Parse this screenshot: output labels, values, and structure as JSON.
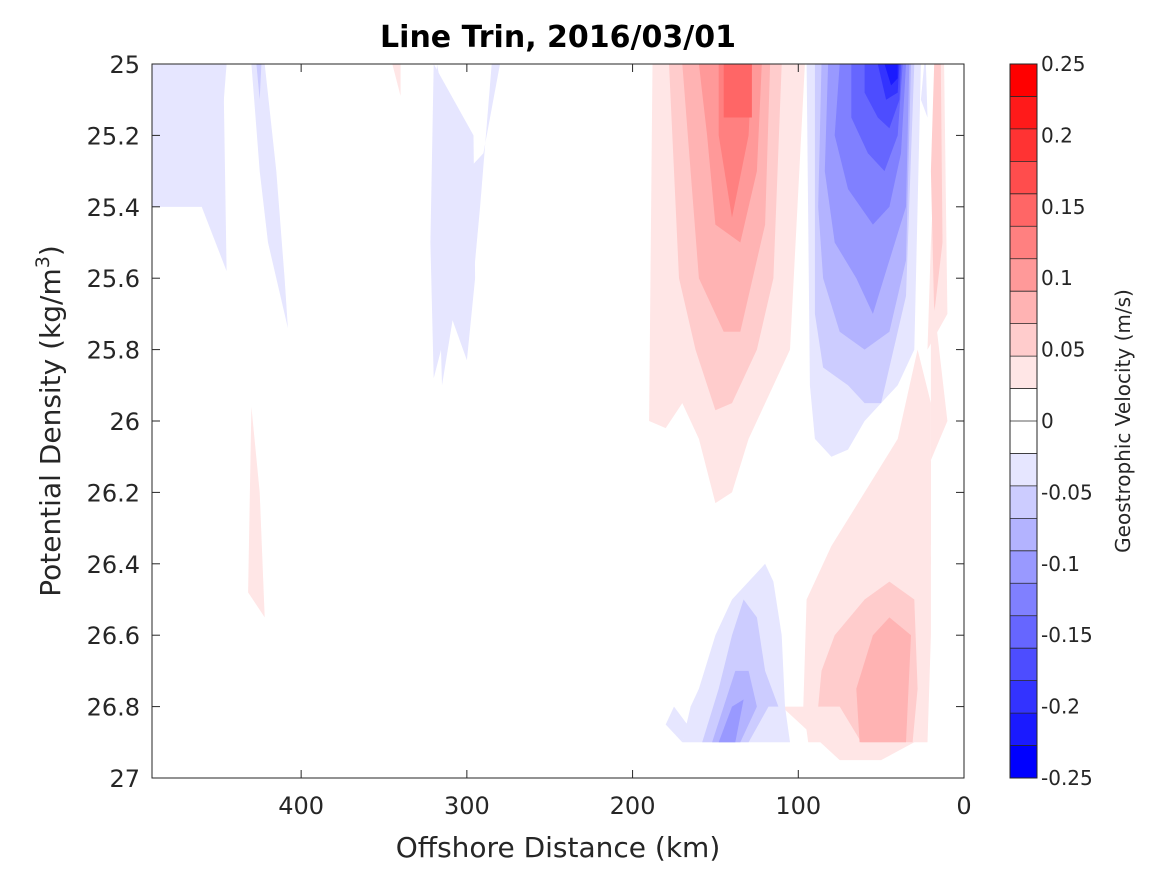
{
  "chart_data": {
    "type": "contour",
    "title": "Line Trin, 2016/03/01",
    "xlabel": "Offshore Distance (km)",
    "ylabel": "Potential Density (kg/m",
    "ylabel_sup": "3",
    "ylabel_close": ")",
    "xlim": [
      490,
      0
    ],
    "ylim": [
      25,
      27
    ],
    "x_ticks": [
      400,
      300,
      200,
      100,
      0
    ],
    "x_tick_labels": [
      "400",
      "300",
      "200",
      "100",
      "0"
    ],
    "y_ticks": [
      25,
      25.2,
      25.4,
      25.6,
      25.8,
      26,
      26.2,
      26.4,
      26.6,
      26.8,
      27
    ],
    "y_tick_labels": [
      "25",
      "25.2",
      "25.4",
      "25.6",
      "25.8",
      "26",
      "26.2",
      "26.4",
      "26.6",
      "26.8",
      "27"
    ],
    "colorbar": {
      "label": "Geostrophic Velocity (m/s)",
      "range": [
        -0.25,
        0.25
      ],
      "step": 0.025,
      "tick_values": [
        0.25,
        0.2,
        0.15,
        0.1,
        0.05,
        0,
        -0.05,
        -0.1,
        -0.15,
        -0.2,
        -0.25
      ],
      "tick_labels": [
        "0.25",
        "0.2",
        "0.15",
        "0.1",
        "0.05",
        "0",
        "-0.05",
        "-0.1",
        "-0.15",
        "-0.2",
        "-0.25"
      ],
      "colors_top_to_bottom": [
        "#ff0000",
        "#ff1a1a",
        "#ff3333",
        "#ff4d4d",
        "#ff6666",
        "#ff8080",
        "#ff9999",
        "#ffb3b3",
        "#ffcccc",
        "#ffe6e6",
        "#ffffff",
        "#ffffff",
        "#e6e6ff",
        "#ccccff",
        "#b3b3ff",
        "#9999ff",
        "#8080ff",
        "#6666ff",
        "#4d4dff",
        "#3333ff",
        "#1a1aff",
        "#0000ff"
      ]
    },
    "regions": [
      {
        "level": -0.025,
        "color": "#e6e6ff",
        "points": [
          [
            490,
            25.36
          ],
          [
            480,
            25.3
          ],
          [
            465,
            25.15
          ],
          [
            460,
            25.0
          ],
          [
            445,
            25.0
          ],
          [
            450,
            25.3
          ],
          [
            460,
            25.4
          ],
          [
            490,
            25.4
          ]
        ]
      },
      {
        "level": -0.025,
        "color": "#e6e6ff",
        "points": [
          [
            490,
            25.4
          ],
          [
            460,
            25.4
          ],
          [
            445,
            25.58
          ],
          [
            447,
            25.0
          ],
          [
            490,
            25.0
          ]
        ]
      },
      {
        "level": -0.025,
        "color": "#e6e6ff",
        "points": [
          [
            430,
            25.0
          ],
          [
            422,
            25.0
          ],
          [
            415,
            25.3
          ],
          [
            410,
            25.6
          ],
          [
            408,
            25.74
          ],
          [
            420,
            25.5
          ],
          [
            425,
            25.3
          ]
        ]
      },
      {
        "level": -0.05,
        "color": "#ccccff",
        "points": [
          [
            427,
            25.0
          ],
          [
            424,
            25.0
          ],
          [
            425,
            25.1
          ]
        ]
      },
      {
        "level": 0.025,
        "color": "#ffe6e6",
        "points": [
          [
            345,
            25.0
          ],
          [
            340,
            25.0
          ],
          [
            340,
            25.09
          ]
        ]
      },
      {
        "level": -0.025,
        "color": "#e6e6ff",
        "points": [
          [
            320,
            25.25
          ],
          [
            318,
            25.4
          ],
          [
            315,
            25.9
          ],
          [
            308,
            25.7
          ],
          [
            300,
            25.8
          ],
          [
            292,
            25.4
          ],
          [
            285,
            25.0
          ],
          [
            280,
            25.0
          ],
          [
            290,
            25.25
          ],
          [
            300,
            25.3
          ],
          [
            310,
            25.2
          ],
          [
            318,
            25.0
          ]
        ]
      },
      {
        "level": -0.025,
        "color": "#e6e6ff",
        "points": [
          [
            322,
            25.5
          ],
          [
            320,
            25.88
          ],
          [
            310,
            25.7
          ],
          [
            300,
            25.83
          ],
          [
            295,
            25.6
          ],
          [
            296,
            25.2
          ],
          [
            320,
            25.0
          ]
        ]
      },
      {
        "level": 0.025,
        "color": "#ffe6e6",
        "points": [
          [
            430,
            25.96
          ],
          [
            432,
            26.48
          ],
          [
            422,
            26.55
          ],
          [
            425,
            26.2
          ]
        ]
      },
      {
        "level": 0.025,
        "color": "#ffe6e6",
        "points": [
          [
            188,
            25.0
          ],
          [
            96,
            25.0
          ],
          [
            105,
            25.8
          ],
          [
            130,
            26.05
          ],
          [
            140,
            26.2
          ],
          [
            150,
            26.23
          ],
          [
            160,
            26.05
          ],
          [
            170,
            25.95
          ],
          [
            180,
            26.02
          ],
          [
            190,
            26.0
          ]
        ]
      },
      {
        "level": 0.05,
        "color": "#ffcccc",
        "points": [
          [
            178,
            25.0
          ],
          [
            110,
            25.0
          ],
          [
            115,
            25.6
          ],
          [
            125,
            25.8
          ],
          [
            140,
            25.95
          ],
          [
            150,
            25.97
          ],
          [
            162,
            25.8
          ],
          [
            172,
            25.6
          ]
        ]
      },
      {
        "level": 0.075,
        "color": "#ffb3b3",
        "points": [
          [
            170,
            25.0
          ],
          [
            117,
            25.0
          ],
          [
            120,
            25.45
          ],
          [
            135,
            25.75
          ],
          [
            145,
            25.75
          ],
          [
            160,
            25.6
          ],
          [
            165,
            25.3
          ]
        ]
      },
      {
        "level": 0.1,
        "color": "#ff9999",
        "points": [
          [
            160,
            25.0
          ],
          [
            122,
            25.0
          ],
          [
            125,
            25.3
          ],
          [
            135,
            25.5
          ],
          [
            150,
            25.45
          ],
          [
            155,
            25.2
          ]
        ]
      },
      {
        "level": 0.125,
        "color": "#ff8080",
        "points": [
          [
            148,
            25.0
          ],
          [
            128,
            25.0
          ],
          [
            130,
            25.2
          ],
          [
            140,
            25.43
          ],
          [
            148,
            25.2
          ]
        ]
      },
      {
        "level": 0.15,
        "color": "#ff6666",
        "points": [
          [
            145,
            25.0
          ],
          [
            128,
            25.0
          ],
          [
            128,
            25.15
          ],
          [
            145,
            25.15
          ]
        ]
      },
      {
        "level": -0.025,
        "color": "#e6e6ff",
        "points": [
          [
            95,
            25.0
          ],
          [
            93,
            25.9
          ],
          [
            90,
            26.05
          ],
          [
            80,
            26.1
          ],
          [
            70,
            26.08
          ],
          [
            60,
            26.0
          ],
          [
            50,
            25.95
          ],
          [
            40,
            25.9
          ],
          [
            30,
            25.8
          ],
          [
            26,
            25.0
          ]
        ]
      },
      {
        "level": -0.05,
        "color": "#ccccff",
        "points": [
          [
            90,
            25.0
          ],
          [
            90,
            25.7
          ],
          [
            85,
            25.85
          ],
          [
            70,
            25.9
          ],
          [
            60,
            25.95
          ],
          [
            50,
            25.95
          ],
          [
            45,
            25.85
          ],
          [
            35,
            25.65
          ],
          [
            30,
            25.0
          ]
        ]
      },
      {
        "level": -0.075,
        "color": "#b3b3ff",
        "points": [
          [
            86,
            25.0
          ],
          [
            88,
            25.4
          ],
          [
            85,
            25.6
          ],
          [
            75,
            25.75
          ],
          [
            60,
            25.8
          ],
          [
            45,
            25.75
          ],
          [
            35,
            25.55
          ],
          [
            32,
            25.0
          ]
        ]
      },
      {
        "level": -0.1,
        "color": "#9999ff",
        "points": [
          [
            82,
            25.0
          ],
          [
            84,
            25.3
          ],
          [
            78,
            25.5
          ],
          [
            65,
            25.6
          ],
          [
            55,
            25.7
          ],
          [
            45,
            25.55
          ],
          [
            35,
            25.4
          ],
          [
            33,
            25.0
          ]
        ]
      },
      {
        "level": -0.125,
        "color": "#8080ff",
        "points": [
          [
            75,
            25.0
          ],
          [
            78,
            25.2
          ],
          [
            70,
            25.35
          ],
          [
            55,
            25.45
          ],
          [
            45,
            25.4
          ],
          [
            38,
            25.25
          ],
          [
            35,
            25.0
          ]
        ]
      },
      {
        "level": -0.15,
        "color": "#6666ff",
        "points": [
          [
            68,
            25.0
          ],
          [
            68,
            25.15
          ],
          [
            58,
            25.25
          ],
          [
            48,
            25.3
          ],
          [
            40,
            25.2
          ],
          [
            37,
            25.0
          ]
        ]
      },
      {
        "level": -0.175,
        "color": "#4d4dff",
        "points": [
          [
            60,
            25.0
          ],
          [
            60,
            25.08
          ],
          [
            52,
            25.15
          ],
          [
            45,
            25.18
          ],
          [
            39,
            25.1
          ],
          [
            38,
            25.0
          ]
        ]
      },
      {
        "level": -0.2,
        "color": "#3333ff",
        "points": [
          [
            52,
            25.0
          ],
          [
            47,
            25.1
          ],
          [
            40,
            25.08
          ],
          [
            39,
            25.0
          ]
        ]
      },
      {
        "level": -0.225,
        "color": "#1a1aff",
        "points": [
          [
            48,
            25.0
          ],
          [
            44,
            25.06
          ],
          [
            40,
            25.04
          ],
          [
            40,
            25.0
          ]
        ]
      },
      {
        "level": 0.025,
        "color": "#ffe6e6",
        "points": [
          [
            20,
            25.0
          ],
          [
            15,
            25.0
          ],
          [
            20,
            25.5
          ],
          [
            22,
            25.8
          ],
          [
            10,
            25.7
          ],
          [
            12,
            25.0
          ]
        ]
      },
      {
        "level": 0.05,
        "color": "#ffcccc",
        "points": [
          [
            18,
            25.0
          ],
          [
            14,
            25.0
          ],
          [
            13,
            25.5
          ],
          [
            18,
            25.7
          ],
          [
            20,
            25.3
          ]
        ]
      },
      {
        "level": -0.025,
        "color": "#e6e6ff",
        "points": [
          [
            23,
            25.0
          ],
          [
            22,
            25.15
          ],
          [
            26,
            25.1
          ],
          [
            24,
            25.0
          ]
        ]
      },
      {
        "level": 0.025,
        "color": "#ffe6e6",
        "points": [
          [
            20,
            25.6
          ],
          [
            20,
            26.35
          ],
          [
            30,
            26.2
          ],
          [
            40,
            26.25
          ],
          [
            60,
            26.38
          ],
          [
            70,
            26.4
          ],
          [
            85,
            26.45
          ],
          [
            95,
            26.6
          ],
          [
            96,
            26.8
          ],
          [
            110,
            26.8
          ],
          [
            75,
            26.95
          ],
          [
            50,
            26.95
          ],
          [
            30,
            26.9
          ],
          [
            22,
            26.9
          ],
          [
            20,
            26.6
          ],
          [
            20,
            26.38
          ],
          [
            30,
            26.22
          ],
          [
            10,
            26.0
          ]
        ]
      },
      {
        "level": 0.025,
        "color": "#ffe6e6",
        "points": [
          [
            28,
            25.8
          ],
          [
            40,
            26.05
          ],
          [
            60,
            26.2
          ],
          [
            80,
            26.35
          ],
          [
            95,
            26.5
          ],
          [
            97,
            26.8
          ],
          [
            94,
            26.9
          ],
          [
            30,
            26.9
          ],
          [
            25,
            26.6
          ],
          [
            20,
            26.4
          ],
          [
            20,
            25.95
          ]
        ]
      },
      {
        "level": 0.05,
        "color": "#ffcccc",
        "points": [
          [
            30,
            26.5
          ],
          [
            45,
            26.45
          ],
          [
            60,
            26.5
          ],
          [
            78,
            26.6
          ],
          [
            86,
            26.7
          ],
          [
            88,
            26.8
          ],
          [
            75,
            26.8
          ],
          [
            62,
            26.9
          ],
          [
            31,
            26.9
          ],
          [
            28,
            26.75
          ]
        ]
      },
      {
        "level": 0.075,
        "color": "#ffb3b3",
        "points": [
          [
            32,
            26.6
          ],
          [
            45,
            26.55
          ],
          [
            55,
            26.6
          ],
          [
            65,
            26.75
          ],
          [
            63,
            26.9
          ],
          [
            35,
            26.9
          ]
        ]
      },
      {
        "level": -0.025,
        "color": "#e6e6ff",
        "points": [
          [
            170,
            26.9
          ],
          [
            105,
            26.9
          ],
          [
            108,
            26.8
          ],
          [
            110,
            26.6
          ],
          [
            115,
            26.45
          ],
          [
            120,
            26.4
          ],
          [
            130,
            26.45
          ],
          [
            140,
            26.5
          ],
          [
            150,
            26.6
          ],
          [
            160,
            26.75
          ],
          [
            165,
            26.8
          ]
        ]
      },
      {
        "level": -0.025,
        "color": "#e6e6ff",
        "points": [
          [
            170,
            26.9
          ],
          [
            167,
            26.85
          ],
          [
            175,
            26.8
          ],
          [
            180,
            26.85
          ]
        ]
      },
      {
        "level": -0.05,
        "color": "#ccccff",
        "points": [
          [
            158,
            26.9
          ],
          [
            148,
            26.75
          ],
          [
            140,
            26.6
          ],
          [
            133,
            26.5
          ],
          [
            125,
            26.55
          ],
          [
            120,
            26.7
          ],
          [
            112,
            26.8
          ],
          [
            118,
            26.8
          ],
          [
            130,
            26.9
          ]
        ]
      },
      {
        "level": -0.075,
        "color": "#b3b3ff",
        "points": [
          [
            152,
            26.9
          ],
          [
            145,
            26.8
          ],
          [
            138,
            26.7
          ],
          [
            130,
            26.7
          ],
          [
            125,
            26.8
          ],
          [
            135,
            26.9
          ]
        ]
      },
      {
        "level": -0.1,
        "color": "#9999ff",
        "points": [
          [
            148,
            26.9
          ],
          [
            140,
            26.8
          ],
          [
            133,
            26.78
          ],
          [
            138,
            26.9
          ]
        ]
      }
    ]
  }
}
